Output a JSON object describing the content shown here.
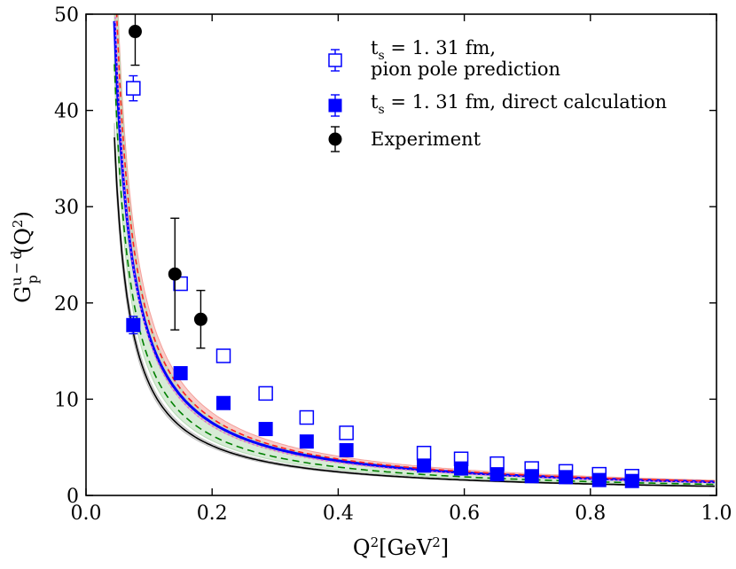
{
  "chart_data": {
    "type": "scatter",
    "title": "",
    "xlabel": {
      "main": "Q",
      "sup": "2",
      "unit_open": "[GeV",
      "unit_sup": "2",
      "unit_close": "]"
    },
    "ylabel": {
      "main": "G",
      "sup": "u − d",
      "sub": "p",
      "rest": "(Q",
      "rest_sup": "2",
      "rest_close": ")"
    },
    "xlim": [
      0.0,
      1.0
    ],
    "ylim": [
      0,
      50
    ],
    "xticks": [
      0.0,
      0.2,
      0.4,
      0.6,
      0.8,
      1.0
    ],
    "xtick_labels": [
      "0.0",
      "0.2",
      "0.4",
      "0.6",
      "0.8",
      "1.0"
    ],
    "yticks": [
      0,
      10,
      20,
      30,
      40,
      50
    ],
    "ytick_labels": [
      "0",
      "10",
      "20",
      "30",
      "40",
      "50"
    ],
    "legend": {
      "placement": "top-right",
      "entries": [
        {
          "name": "pion-pole",
          "prefix": "t",
          "sub": "s",
          "text": " = 1. 31 fm,",
          "text2": " pion pole prediction"
        },
        {
          "name": "direct",
          "prefix": "t",
          "sub": "s",
          "text": " = 1. 31 fm, direct calculation"
        },
        {
          "name": "experiment",
          "text": "Experiment"
        }
      ]
    },
    "series": [
      {
        "name": "t_s = 1.31 fm, pion pole prediction",
        "marker": "open-square",
        "color": "#0000ff",
        "x": [
          0.075,
          0.15,
          0.218,
          0.285,
          0.35,
          0.413,
          0.536,
          0.595,
          0.652,
          0.707,
          0.761,
          0.814,
          0.866
        ],
        "y": [
          42.3,
          22.0,
          14.5,
          10.6,
          8.1,
          6.5,
          4.4,
          3.8,
          3.3,
          2.8,
          2.5,
          2.2,
          2.0
        ],
        "yerr": [
          1.3,
          0.6,
          0.4,
          0.3,
          0.3,
          0.3,
          0.2,
          0.2,
          0.2,
          0.2,
          0.2,
          0.2,
          0.2
        ]
      },
      {
        "name": "t_s = 1.31 fm, direct calculation",
        "marker": "filled-square",
        "color": "#0000ff",
        "x": [
          0.075,
          0.15,
          0.218,
          0.285,
          0.35,
          0.413,
          0.536,
          0.595,
          0.652,
          0.707,
          0.761,
          0.814,
          0.866
        ],
        "y": [
          17.7,
          12.7,
          9.6,
          6.9,
          5.6,
          4.7,
          3.1,
          2.8,
          2.2,
          2.0,
          1.9,
          1.6,
          1.5
        ],
        "yerr": [
          0.9,
          0.5,
          0.4,
          0.3,
          0.3,
          0.2,
          0.2,
          0.2,
          0.2,
          0.2,
          0.2,
          0.2,
          0.2
        ]
      },
      {
        "name": "Experiment",
        "marker": "filled-circle",
        "color": "#000000",
        "x": [
          0.078,
          0.141,
          0.182
        ],
        "y": [
          48.2,
          23.0,
          18.3
        ],
        "yerr": [
          3.5,
          5.8,
          3.0
        ]
      }
    ],
    "curves": [
      {
        "name": "pion-pole-fit-band",
        "color": "#f4a09a",
        "band": true,
        "a": 1.42,
        "k": 0.02,
        "c": 0.0,
        "spread": 0.09
      },
      {
        "name": "pion-pole-fit",
        "color": "#0000ff",
        "a": 1.38,
        "k": 0.017,
        "c": 0.0,
        "width": 3,
        "dash": ""
      },
      {
        "name": "red-dashed",
        "color": "#ff2020",
        "a": 1.44,
        "k": 0.02,
        "c": 0.0,
        "width": 1.6,
        "dash": "6,4"
      },
      {
        "name": "magenta-dotted",
        "color": "#e060e0",
        "a": 1.3,
        "k": 0.02,
        "c": 0.0,
        "width": 1.6,
        "dash": "2,3"
      },
      {
        "name": "green-band",
        "color": "#b6dbb4",
        "band": true,
        "a": 1.22,
        "k": 0.022,
        "c": 0.0,
        "spread": 0.17
      },
      {
        "name": "green-dashed",
        "color": "#008000",
        "a": 1.12,
        "k": 0.02,
        "c": 0.0,
        "width": 1.6,
        "dash": "8,5"
      },
      {
        "name": "black-fit-band",
        "color": "#bdbdbd",
        "band": true,
        "a": 0.93,
        "k": 0.02,
        "c": 0.0,
        "spread": 0.04
      },
      {
        "name": "black-fit",
        "color": "#000000",
        "a": 0.93,
        "k": 0.02,
        "c": 0.0,
        "width": 1.6,
        "dash": ""
      }
    ]
  }
}
